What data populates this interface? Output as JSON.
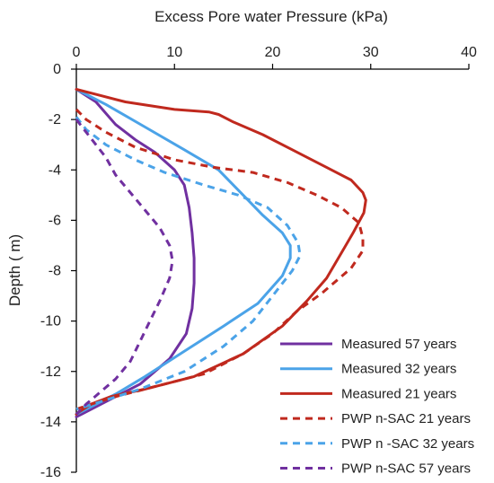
{
  "chart_data": {
    "type": "line",
    "title": "",
    "xlabel": "Excess Pore water Pressure (kPa)",
    "ylabel": "Depth ( m)",
    "xlim": [
      0,
      40
    ],
    "ylim": [
      -16,
      0
    ],
    "x_ticks": [
      0,
      10,
      20,
      30,
      40
    ],
    "y_ticks": [
      0,
      -2,
      -4,
      -6,
      -8,
      -10,
      -12,
      -14,
      -16
    ],
    "x_axis_position": "top",
    "grid": false,
    "legend": "bottom-right",
    "series": [
      {
        "name": "Measured 57 years",
        "color": "#7030A0",
        "style": "solid",
        "points": [
          [
            0,
            -0.8
          ],
          [
            2,
            -1.3
          ],
          [
            4,
            -2.2
          ],
          [
            6,
            -2.8
          ],
          [
            8,
            -3.3
          ],
          [
            10,
            -4.0
          ],
          [
            11,
            -4.6
          ],
          [
            11.5,
            -5.5
          ],
          [
            11.8,
            -6.5
          ],
          [
            12,
            -7.5
          ],
          [
            12,
            -8.5
          ],
          [
            11.8,
            -9.5
          ],
          [
            11.2,
            -10.5
          ],
          [
            9.5,
            -11.5
          ],
          [
            6.5,
            -12.5
          ],
          [
            3,
            -13.2
          ],
          [
            0.5,
            -13.7
          ],
          [
            0,
            -13.8
          ]
        ]
      },
      {
        "name": "Measured  32 years",
        "color": "#4BA3E8",
        "style": "solid",
        "points": [
          [
            0,
            -0.8
          ],
          [
            3,
            -1.4
          ],
          [
            7,
            -2.3
          ],
          [
            11,
            -3.2
          ],
          [
            14.5,
            -4.0
          ],
          [
            17,
            -5.0
          ],
          [
            19,
            -5.8
          ],
          [
            21,
            -6.5
          ],
          [
            21.8,
            -7.0
          ],
          [
            21.8,
            -7.5
          ],
          [
            21,
            -8.2
          ],
          [
            18.5,
            -9.3
          ],
          [
            15,
            -10.2
          ],
          [
            11,
            -11.2
          ],
          [
            7,
            -12.2
          ],
          [
            4,
            -12.9
          ],
          [
            1.5,
            -13.4
          ],
          [
            0,
            -13.7
          ]
        ]
      },
      {
        "name": "Measured 21 years",
        "color": "#C0291E",
        "style": "solid",
        "points": [
          [
            0,
            -0.8
          ],
          [
            2,
            -1.0
          ],
          [
            5,
            -1.3
          ],
          [
            10,
            -1.6
          ],
          [
            13.5,
            -1.7
          ],
          [
            14.5,
            -1.8
          ],
          [
            16,
            -2.1
          ],
          [
            19,
            -2.6
          ],
          [
            22,
            -3.2
          ],
          [
            25.5,
            -3.9
          ],
          [
            28,
            -4.4
          ],
          [
            29.2,
            -4.9
          ],
          [
            29.5,
            -5.2
          ],
          [
            29.3,
            -5.7
          ],
          [
            28.2,
            -6.5
          ],
          [
            27,
            -7.3
          ],
          [
            25.5,
            -8.3
          ],
          [
            23.5,
            -9.2
          ],
          [
            21,
            -10.2
          ],
          [
            17,
            -11.3
          ],
          [
            12,
            -12.2
          ],
          [
            7,
            -12.7
          ],
          [
            3.5,
            -13.0
          ],
          [
            1.5,
            -13.3
          ],
          [
            0.3,
            -13.6
          ],
          [
            0,
            -13.7
          ]
        ]
      },
      {
        "name": "PWP n-SAC 21 years",
        "color": "#C0291E",
        "style": "dashed",
        "points": [
          [
            0,
            -1.6
          ],
          [
            1,
            -2.0
          ],
          [
            3,
            -2.5
          ],
          [
            6,
            -3.1
          ],
          [
            10,
            -3.6
          ],
          [
            14,
            -3.9
          ],
          [
            18,
            -4.1
          ],
          [
            21.5,
            -4.5
          ],
          [
            24.5,
            -5.0
          ],
          [
            27,
            -5.5
          ],
          [
            28.8,
            -6.1
          ],
          [
            29.2,
            -6.7
          ],
          [
            29.2,
            -7.2
          ],
          [
            28,
            -7.9
          ],
          [
            25,
            -8.9
          ],
          [
            22.5,
            -9.6
          ],
          [
            20,
            -10.5
          ],
          [
            17,
            -11.3
          ],
          [
            13,
            -12.1
          ],
          [
            8,
            -12.6
          ],
          [
            4,
            -13.0
          ],
          [
            1.5,
            -13.3
          ],
          [
            0,
            -13.5
          ]
        ]
      },
      {
        "name": "PWP n -SAC 32 years",
        "color": "#4BA3E8",
        "style": "dashed",
        "points": [
          [
            0,
            -1.9
          ],
          [
            1,
            -2.4
          ],
          [
            3,
            -3.0
          ],
          [
            6,
            -3.6
          ],
          [
            9,
            -4.1
          ],
          [
            13,
            -4.6
          ],
          [
            16.5,
            -5.0
          ],
          [
            19.5,
            -5.5
          ],
          [
            21.5,
            -6.2
          ],
          [
            22.6,
            -6.9
          ],
          [
            22.8,
            -7.4
          ],
          [
            22,
            -8.0
          ],
          [
            20,
            -9.0
          ],
          [
            18,
            -10.0
          ],
          [
            15,
            -11.0
          ],
          [
            11,
            -12.0
          ],
          [
            6.5,
            -12.7
          ],
          [
            2.5,
            -13.2
          ],
          [
            0,
            -13.5
          ]
        ]
      },
      {
        "name": "PWP n-SAC 57 years",
        "color": "#7030A0",
        "style": "dashed",
        "points": [
          [
            0,
            -2.0
          ],
          [
            1,
            -2.5
          ],
          [
            2,
            -3.0
          ],
          [
            3,
            -3.5
          ],
          [
            4,
            -4.2
          ],
          [
            5.5,
            -4.9
          ],
          [
            7,
            -5.6
          ],
          [
            8.5,
            -6.3
          ],
          [
            9.5,
            -7.0
          ],
          [
            9.8,
            -7.6
          ],
          [
            9.5,
            -8.3
          ],
          [
            8.5,
            -9.2
          ],
          [
            7.5,
            -10.0
          ],
          [
            6.5,
            -10.8
          ],
          [
            5.5,
            -11.6
          ],
          [
            4,
            -12.3
          ],
          [
            2.5,
            -12.8
          ],
          [
            1,
            -13.3
          ],
          [
            0,
            -13.7
          ]
        ]
      }
    ]
  }
}
